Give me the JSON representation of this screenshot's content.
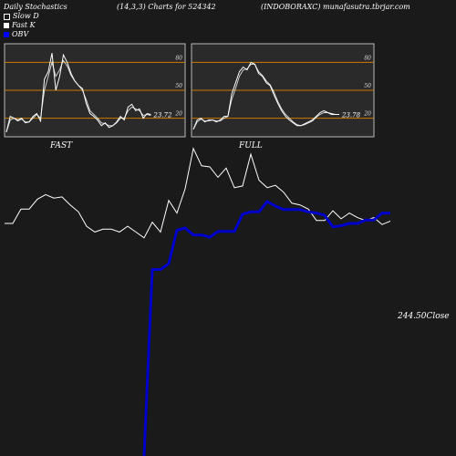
{
  "header": {
    "left": "Daily Stochastics",
    "center": "(14,3,3) Charts for 524342",
    "right": "(INDOBORAXC) munafasutra.tbrjar.com"
  },
  "legend": [
    {
      "label": "Slow  D",
      "color": "#1a1a1a"
    },
    {
      "label": "Fast K",
      "color": "#ffffff"
    },
    {
      "label": "OBV",
      "color": "#0000ff"
    }
  ],
  "colors": {
    "background": "#1a1a1a",
    "panel": "#2a2a2a",
    "level_line": "#cc7a00",
    "price_line": "#ffffff",
    "obv_line": "#0000cc"
  },
  "chart_data": [
    {
      "type": "line",
      "title": "FAST",
      "ylim": [
        0,
        100
      ],
      "levels": [
        20,
        50,
        80
      ],
      "level_labels": [
        "20",
        "50",
        "80"
      ],
      "last_value_label": "23.72",
      "series": [
        {
          "values": [
            5,
            22,
            20,
            18,
            20,
            15,
            16,
            22,
            25,
            17,
            62,
            70,
            90,
            50,
            65,
            88,
            80,
            68,
            60,
            55,
            52,
            36,
            25,
            22,
            18,
            12,
            15,
            10,
            12,
            16,
            22,
            18,
            32,
            35,
            28,
            30,
            20,
            25,
            24
          ]
        },
        {
          "values": [
            5,
            18,
            20,
            17,
            19,
            16,
            16,
            20,
            24,
            20,
            50,
            65,
            80,
            65,
            72,
            82,
            76,
            66,
            60,
            55,
            50,
            40,
            28,
            24,
            20,
            15,
            14,
            12,
            12,
            15,
            20,
            20,
            28,
            32,
            30,
            28,
            23,
            24,
            23
          ]
        }
      ]
    },
    {
      "type": "line",
      "title": "FULL",
      "ylim": [
        0,
        100
      ],
      "levels": [
        20,
        50,
        80
      ],
      "level_labels": [
        "20",
        "50",
        "80"
      ],
      "last_value_label": "23.78",
      "series": [
        {
          "values": [
            8,
            18,
            20,
            16,
            18,
            18,
            16,
            18,
            22,
            22,
            46,
            58,
            70,
            75,
            72,
            80,
            78,
            68,
            65,
            58,
            55,
            45,
            36,
            28,
            22,
            18,
            15,
            12,
            12,
            14,
            16,
            18,
            22,
            26,
            28,
            26,
            24,
            24,
            24
          ]
        },
        {
          "values": [
            8,
            16,
            19,
            17,
            17,
            18,
            17,
            17,
            20,
            22,
            40,
            52,
            65,
            72,
            73,
            78,
            78,
            70,
            66,
            60,
            56,
            48,
            38,
            30,
            24,
            20,
            16,
            13,
            12,
            13,
            15,
            17,
            21,
            24,
            26,
            26,
            25,
            24,
            24
          ]
        }
      ]
    },
    {
      "type": "line",
      "title": "",
      "last_value_label": "244.50",
      "close_label": "Close",
      "series": [
        {
          "values": [
            220,
            220,
            245,
            245,
            262,
            270,
            264,
            266,
            252,
            240,
            215,
            205,
            210,
            210,
            205,
            215,
            205,
            195,
            222,
            205,
            260,
            238,
            280,
            350,
            320,
            318,
            300,
            316,
            282,
            285,
            340,
            295,
            282,
            286,
            274,
            255,
            252,
            245,
            225,
            225,
            242,
            228,
            238,
            230,
            225,
            230,
            218,
            224
          ]
        },
        {
          "values": [
            -60,
            -60,
            -60,
            -60,
            -60,
            -60,
            -60,
            -60,
            -60,
            -60,
            -60,
            -60,
            -60,
            -60,
            -60,
            -60,
            -60,
            -60,
            140,
            140,
            150,
            208,
            212,
            200,
            200,
            196,
            206,
            206,
            206,
            236,
            240,
            240,
            258,
            250,
            244,
            244,
            244,
            240,
            238,
            234,
            214,
            216,
            220,
            220,
            226,
            226,
            238,
            238
          ]
        }
      ]
    }
  ]
}
